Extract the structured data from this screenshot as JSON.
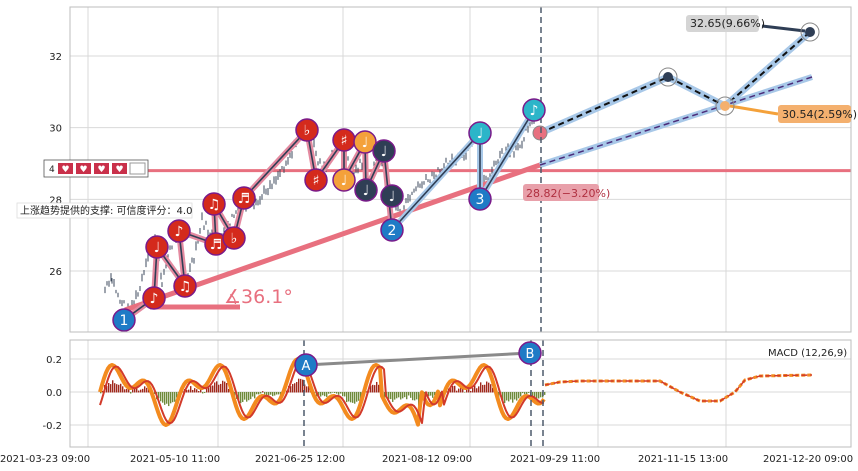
{
  "chart_data": [
    {
      "type": "line",
      "panel": "price",
      "y_ticks": [
        26,
        28,
        30,
        32
      ],
      "ylim": [
        24.4,
        33.4
      ],
      "x_ticks": [
        "2021-03-23 09:00",
        "2021-05-10 11:00",
        "2021-06-25 12:00",
        "2021-08-12 09:00",
        "2021-09-29 11:00",
        "2021-11-15 13:00",
        "2021-12-20 09:00"
      ],
      "horizontal_level": 28.8,
      "wave_points": [
        {
          "label": "1",
          "value": 24.7
        },
        {
          "label": "2",
          "value": 27.3
        },
        {
          "label": "3",
          "value": 28.0
        },
        {
          "label": "",
          "value": 30.5
        }
      ],
      "note_markers": [
        {
          "label": "♪",
          "value": 25.1
        },
        {
          "label": "♩",
          "value": 26.7
        },
        {
          "label": "♫",
          "value": 25.4
        },
        {
          "label": "♪",
          "value": 27.1
        },
        {
          "label": "♬",
          "value": 26.8
        },
        {
          "label": "♫",
          "value": 27.8
        },
        {
          "label": "♭",
          "value": 26.9
        },
        {
          "label": "♬",
          "value": 27.9
        },
        {
          "label": "♭",
          "value": 29.9
        },
        {
          "label": "♯",
          "value": 28.6
        },
        {
          "label": "♯",
          "value": 29.6
        },
        {
          "label": "♩",
          "value": 28.6
        },
        {
          "label": "♩",
          "value": 29.6
        },
        {
          "label": "♩",
          "value": 28.3
        },
        {
          "label": "♩",
          "value": 29.4
        },
        {
          "label": "♩",
          "value": 29.8
        }
      ],
      "projection_points": [
        {
          "value": 29.8
        },
        {
          "value": 31.4
        },
        {
          "value": 30.54
        },
        {
          "value": 32.65
        }
      ],
      "annotations": {
        "angle": "∡36.1°",
        "target_high": "32.65(9.66%)",
        "target_mid": "30.54(2.59%)",
        "target_low": "28.82(−3.20%)",
        "support_text": "上涨趋势提供的支撑: 可信度评分：4.0",
        "support_value": "4",
        "support_icon": "♥"
      }
    },
    {
      "type": "line",
      "panel": "macd",
      "legend": "MACD (12,26,9)",
      "y_ticks": [
        0.2,
        0.0,
        -0.2
      ],
      "ylim": [
        -0.33,
        0.33
      ],
      "divergence_labels": [
        "A",
        "B"
      ],
      "divergence_values": [
        0.17,
        0.24
      ]
    }
  ],
  "colors": {
    "accent_red": "#e8707f",
    "dark_navy": "#2f3e55",
    "light_blue": "#a8c8e8",
    "note_red": "#d42a1c",
    "note_orange": "#f4a13a",
    "wave_blue": "#1f7bc6",
    "teal": "#2cb5c9",
    "macd_orange": "#f38b1f",
    "macd_red": "#d23a2a",
    "gray": "#8a8a8a"
  }
}
